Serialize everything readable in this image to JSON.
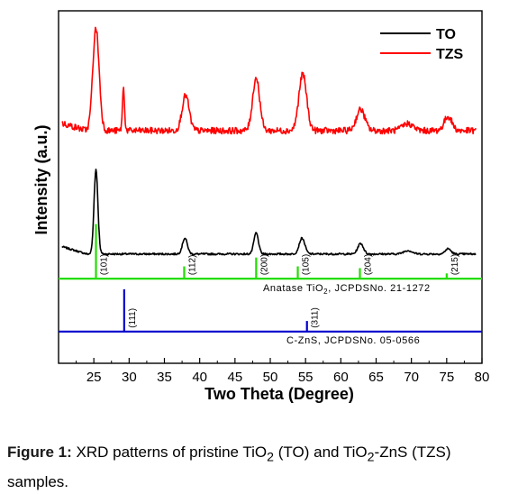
{
  "chart_data": {
    "type": "line",
    "xlabel": "Two Theta (Degree)",
    "ylabel": "Intensity (a.u.)",
    "xlim": [
      20,
      80
    ],
    "xticks": [
      25,
      30,
      35,
      40,
      45,
      50,
      55,
      60,
      65,
      70,
      75,
      80
    ],
    "ylim": [
      0,
      10
    ],
    "grid": false,
    "legend_position": "top-right",
    "series": [
      {
        "name": "TO",
        "color": "#000000",
        "baseline": 3.1,
        "peaks": [
          {
            "x": 25.3,
            "height": 2.4,
            "width": 0.55
          },
          {
            "x": 37.9,
            "height": 0.45,
            "width": 0.7
          },
          {
            "x": 48.0,
            "height": 0.6,
            "width": 0.65
          },
          {
            "x": 54.5,
            "height": 0.45,
            "width": 0.8
          },
          {
            "x": 62.8,
            "height": 0.3,
            "width": 0.8
          },
          {
            "x": 69.5,
            "height": 0.1,
            "width": 1.2
          },
          {
            "x": 75.2,
            "height": 0.15,
            "width": 0.8
          }
        ]
      },
      {
        "name": "TZS",
        "color": "#ff0000",
        "baseline": 6.6,
        "peaks": [
          {
            "x": 25.3,
            "height": 2.9,
            "width": 0.9
          },
          {
            "x": 29.2,
            "height": 1.2,
            "width": 0.3
          },
          {
            "x": 38.0,
            "height": 1.0,
            "width": 1.0
          },
          {
            "x": 48.0,
            "height": 1.5,
            "width": 1.0
          },
          {
            "x": 54.6,
            "height": 1.6,
            "width": 1.1
          },
          {
            "x": 62.8,
            "height": 0.6,
            "width": 1.2
          },
          {
            "x": 69.5,
            "height": 0.2,
            "width": 1.5
          },
          {
            "x": 75.2,
            "height": 0.4,
            "width": 1.1
          }
        ]
      }
    ],
    "reference_patterns": [
      {
        "label": "Anatase TiO",
        "label_sub": "2",
        "label_suffix": ", JCPDSNo. 21-1272",
        "color": "#22dd00",
        "baseline": 2.4,
        "lines": [
          {
            "x": 25.3,
            "height": 1.55,
            "hkl": "(101)"
          },
          {
            "x": 37.8,
            "height": 0.35,
            "hkl": "(112)"
          },
          {
            "x": 48.0,
            "height": 0.6,
            "hkl": "(200)"
          },
          {
            "x": 53.9,
            "height": 0.35,
            "hkl": "(105)"
          },
          {
            "x": 62.7,
            "height": 0.3,
            "hkl": "(204)"
          },
          {
            "x": 75.0,
            "height": 0.15,
            "hkl": "(215)"
          }
        ]
      },
      {
        "label": "C-ZnS, JCPDSNo. 05-0566",
        "label_sub": "",
        "label_suffix": "",
        "color": "#0000cc",
        "baseline": 0.9,
        "lines": [
          {
            "x": 29.3,
            "height": 1.2,
            "hkl": "(111)"
          },
          {
            "x": 55.2,
            "height": 0.3,
            "hkl": "(311)"
          }
        ]
      }
    ]
  },
  "caption": {
    "label": "Figure 1:",
    "text_a": " XRD patterns of pristine TiO",
    "sub_a": "2",
    "text_b": " (TO) and TiO",
    "sub_b": "2",
    "text_c": "-ZnS (TZS) samples."
  }
}
